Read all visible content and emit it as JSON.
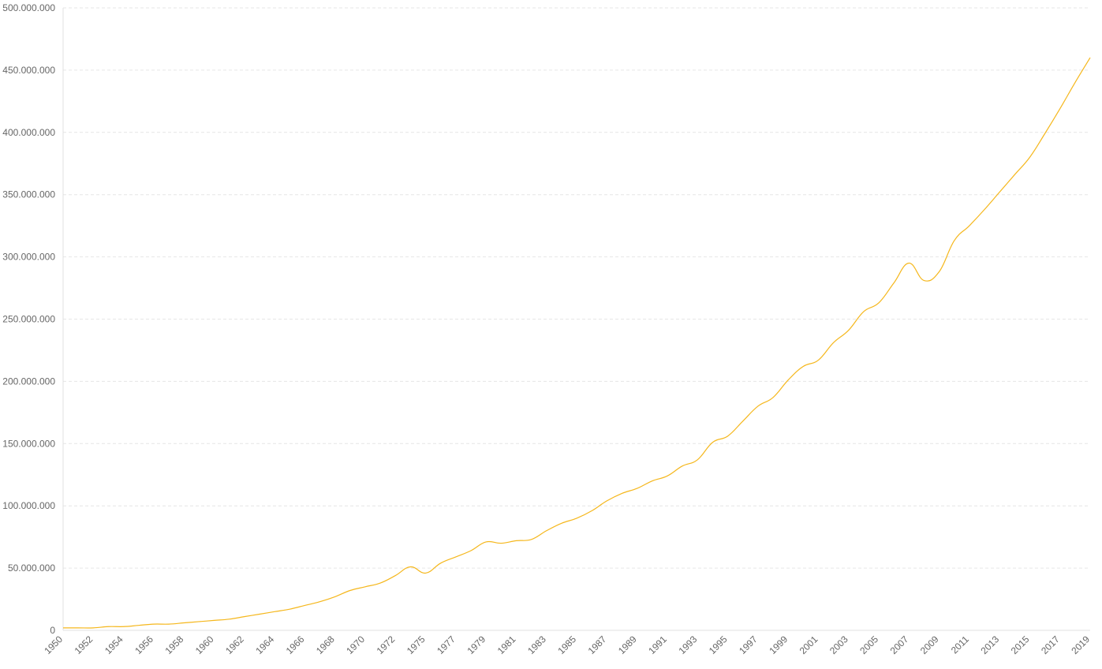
{
  "chart_data": {
    "type": "line",
    "categories": [
      "1950",
      null,
      "1952",
      null,
      "1954",
      null,
      "1956",
      null,
      "1958",
      null,
      "1960",
      null,
      "1962",
      null,
      "1964",
      null,
      "1966",
      null,
      "1968",
      null,
      "1970",
      null,
      "1972",
      null,
      "1975",
      null,
      "1977",
      null,
      "1979",
      null,
      "1981",
      null,
      "1983",
      null,
      "1985",
      null,
      "1987",
      null,
      "1989",
      null,
      "1991",
      null,
      "1993",
      null,
      "1995",
      null,
      "1997",
      null,
      "1999",
      null,
      "2001",
      null,
      "2003",
      null,
      "2005",
      null,
      "2007",
      null,
      "2009",
      null,
      "2011",
      null,
      "2013",
      null,
      "2015",
      null,
      "2017",
      null,
      "2019"
    ],
    "series": [
      {
        "color": "#f5b71c",
        "values": [
          2000000,
          2000000,
          2000000,
          3000000,
          3000000,
          4000000,
          5000000,
          5000000,
          6000000,
          7000000,
          8000000,
          9000000,
          11000000,
          13000000,
          15000000,
          17000000,
          20000000,
          23000000,
          27000000,
          32000000,
          35000000,
          38000000,
          44000000,
          51000000,
          46000000,
          54000000,
          59000000,
          64000000,
          71000000,
          70000000,
          72000000,
          73000000,
          80000000,
          86000000,
          90000000,
          96000000,
          104000000,
          110000000,
          114000000,
          120000000,
          124000000,
          132000000,
          137000000,
          151000000,
          156000000,
          168000000,
          180000000,
          187000000,
          201000000,
          212000000,
          217000000,
          231000000,
          241000000,
          256000000,
          263000000,
          279000000,
          295000000,
          281000000,
          288000000,
          313000000,
          325000000,
          338000000,
          352000000,
          366000000,
          380000000,
          399000000,
          419000000,
          440000000,
          460000000
        ]
      }
    ],
    "ylim": [
      0,
      500000000
    ],
    "yticks": [
      0,
      {
        "value": 50000000,
        "label": "50.000.000"
      },
      {
        "value": 100000000,
        "label": "100.000.000"
      },
      {
        "value": 150000000,
        "label": "150.000.000"
      },
      {
        "value": 200000000,
        "label": "200.000.000"
      },
      {
        "value": 250000000,
        "label": "250.000.000"
      },
      {
        "value": 300000000,
        "label": "300.000.000"
      },
      {
        "value": 350000000,
        "label": "350.000.000"
      },
      {
        "value": 400000000,
        "label": "400.000.000"
      },
      {
        "value": 450000000,
        "label": "450.000.000"
      },
      {
        "value": 500000000,
        "label": "500.000.000"
      }
    ],
    "grid": true
  }
}
